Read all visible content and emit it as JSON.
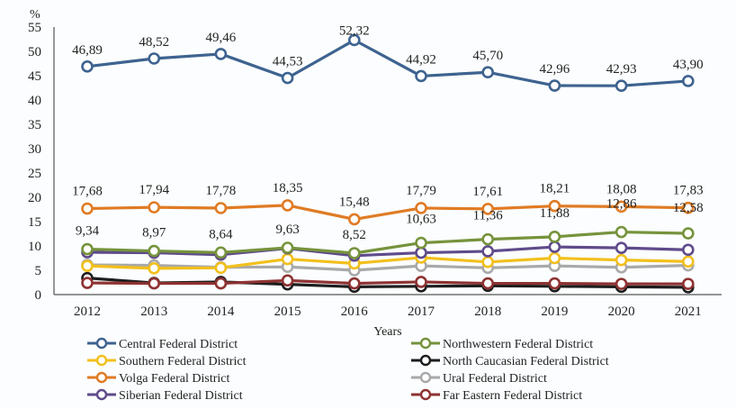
{
  "chart_data": {
    "type": "line",
    "title": "",
    "xlabel": "Years",
    "ylabel": "%",
    "ylim": [
      0,
      55
    ],
    "yticks": [
      0,
      5,
      10,
      15,
      20,
      25,
      30,
      35,
      40,
      45,
      50,
      55
    ],
    "grid": false,
    "legend_position": "bottom",
    "x": [
      "2012",
      "2013",
      "2014",
      "2015",
      "2016",
      "2017",
      "2018",
      "2019",
      "2020",
      "2021"
    ],
    "series": [
      {
        "name": "Central Federal District",
        "color": "#3e6390",
        "values": [
          46.89,
          48.52,
          49.46,
          44.53,
          52.32,
          44.92,
          45.7,
          42.96,
          42.93,
          43.9
        ],
        "labels": [
          "46,89",
          "48,52",
          "49,46",
          "44,53",
          "52,32",
          "44,92",
          "45,70",
          "42,96",
          "42,93",
          "43,90"
        ]
      },
      {
        "name": "Northwestern Federal District",
        "color": "#76933c",
        "values": [
          9.34,
          8.97,
          8.64,
          9.63,
          8.52,
          10.63,
          11.36,
          11.88,
          12.86,
          12.58
        ],
        "labels": [
          "9,34",
          "8,97",
          "8,64",
          "9,63",
          "8,52",
          "10,63",
          "11,36",
          "11,88",
          "12,86",
          "12,58"
        ]
      },
      {
        "name": "Southern Federal District",
        "color": "#f2c01c",
        "values": [
          5.9,
          5.4,
          5.5,
          7.3,
          6.4,
          7.6,
          6.7,
          7.5,
          7.1,
          6.8
        ],
        "labels": []
      },
      {
        "name": "North Caucasian Federal District",
        "color": "#1d1d1d",
        "values": [
          3.4,
          2.4,
          2.6,
          2.1,
          1.6,
          1.7,
          1.8,
          1.7,
          1.6,
          1.5
        ],
        "labels": []
      },
      {
        "name": "Volga Federal District",
        "color": "#e07b24",
        "values": [
          17.68,
          17.94,
          17.78,
          18.35,
          15.48,
          17.79,
          17.61,
          18.21,
          18.08,
          17.83
        ],
        "labels": [
          "17,68",
          "17,94",
          "17,78",
          "18,35",
          "15,48",
          "17,79",
          "17,61",
          "18,21",
          "18,08",
          "17,83"
        ]
      },
      {
        "name": "Ural Federal District",
        "color": "#a9a9a9",
        "values": [
          6.1,
          6.0,
          5.6,
          5.7,
          5.0,
          5.9,
          5.5,
          5.9,
          5.6,
          6.0
        ],
        "labels": []
      },
      {
        "name": "Siberian Federal District",
        "color": "#5f4b8b",
        "values": [
          8.7,
          8.6,
          8.2,
          9.5,
          8.0,
          8.6,
          8.9,
          9.8,
          9.6,
          9.2
        ],
        "labels": []
      },
      {
        "name": "Far Eastern Federal District",
        "color": "#8e3232",
        "values": [
          2.4,
          2.3,
          2.3,
          2.9,
          2.3,
          2.6,
          2.3,
          2.3,
          2.2,
          2.2
        ],
        "labels": []
      }
    ]
  }
}
